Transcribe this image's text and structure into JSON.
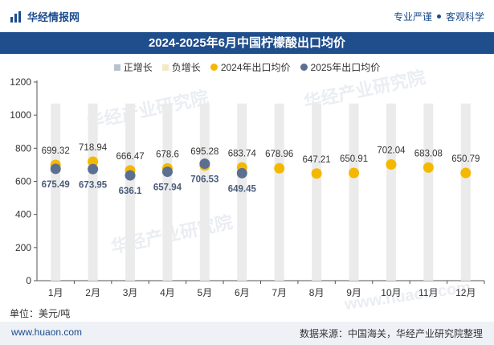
{
  "header": {
    "brand": "华经情报网",
    "right_a": "专业严谨",
    "right_b": "客观科学"
  },
  "watermarks": [
    "华经产业研究院",
    "华经产业研究院",
    "华经产业研究院",
    "www.huaon.com"
  ],
  "unit_label": "单位：美元/吨",
  "footer": {
    "left": "www.huaon.com",
    "right": "数据来源：中国海关，华经产业研究院整理"
  },
  "legend": [
    {
      "label": "正增长",
      "color": "#b8c2cf"
    },
    {
      "label": "负增长",
      "color": "#f3e9c6"
    },
    {
      "label": "2024年出口均价",
      "color": "#f5b800"
    },
    {
      "label": "2025年出口均价",
      "color": "#5b6f91"
    }
  ],
  "chart_data": {
    "type": "scatter",
    "title": "2024-2025年6月中国柠檬酸出口均价",
    "categories": [
      "1月",
      "2月",
      "3月",
      "4月",
      "5月",
      "6月",
      "7月",
      "8月",
      "9月",
      "10月",
      "11月",
      "12月"
    ],
    "ylim": [
      0,
      1200
    ],
    "yticks": [
      0,
      200,
      400,
      600,
      800,
      1000,
      1200
    ],
    "series": [
      {
        "name": "2024年出口均价",
        "values": [
          699.32,
          718.94,
          666.47,
          678.6,
          695.28,
          683.74,
          678.96,
          647.21,
          650.91,
          702.04,
          683.08,
          650.79
        ],
        "labels": [
          "699.32",
          "718.94",
          "666.47",
          "678.6",
          "695.28",
          "683.74",
          "678.96",
          "647.21",
          "650.91",
          "702.04",
          "683.08",
          "650.79"
        ]
      },
      {
        "name": "2025年出口均价",
        "values": [
          675.49,
          673.95,
          636.1,
          657.94,
          706.53,
          649.45
        ],
        "labels": [
          "675.49",
          "673.95",
          "636.1",
          "657.94",
          "706.53",
          "649.45"
        ]
      }
    ],
    "background_bars_max": 1070
  }
}
